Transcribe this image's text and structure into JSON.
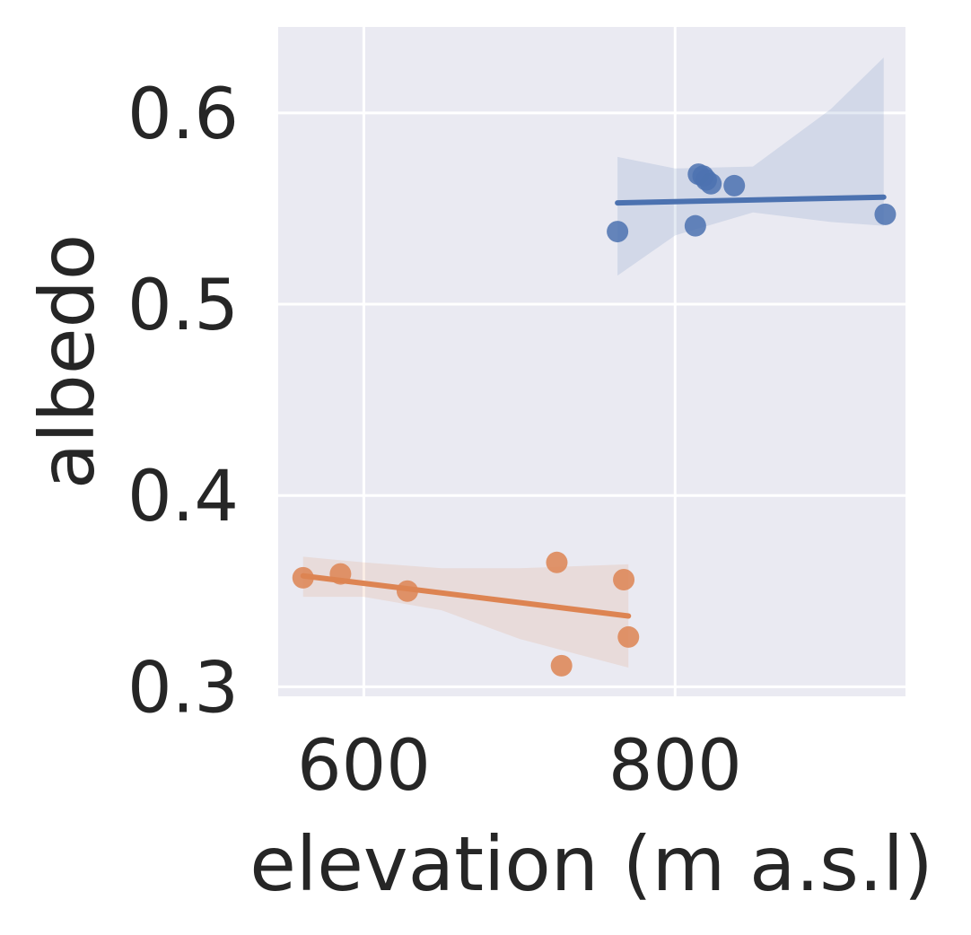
{
  "chart_data": {
    "type": "scatter",
    "title": "",
    "xlabel": "elevation (m a.s.l)",
    "ylabel": "albedo",
    "xlim": [
      545,
      948
    ],
    "ylim": [
      0.295,
      0.645
    ],
    "xticks": [
      600,
      800
    ],
    "yticks": [
      0.3,
      0.4,
      0.5,
      0.6
    ],
    "xtick_labels": [
      "600",
      "800"
    ],
    "ytick_labels": [
      "0.3",
      "0.4",
      "0.5",
      "0.6"
    ],
    "grid": true,
    "background": "#EAEAF2",
    "series": [
      {
        "color": "#4C72B0",
        "points": [
          {
            "x": 763,
            "y": 0.538
          },
          {
            "x": 813,
            "y": 0.541
          },
          {
            "x": 815,
            "y": 0.568
          },
          {
            "x": 818,
            "y": 0.567
          },
          {
            "x": 820,
            "y": 0.565
          },
          {
            "x": 823,
            "y": 0.563
          },
          {
            "x": 838,
            "y": 0.562
          },
          {
            "x": 935,
            "y": 0.547
          }
        ],
        "regression": {
          "x": [
            763,
            934
          ],
          "y": [
            0.553,
            0.556
          ]
        },
        "ci_band": {
          "x": [
            763,
            800,
            850,
            900,
            934
          ],
          "lower": [
            0.515,
            0.536,
            0.548,
            0.543,
            0.541
          ],
          "upper": [
            0.577,
            0.571,
            0.572,
            0.602,
            0.629
          ]
        }
      },
      {
        "color": "#DD8452",
        "points": [
          {
            "x": 561,
            "y": 0.357
          },
          {
            "x": 585,
            "y": 0.359
          },
          {
            "x": 628,
            "y": 0.35
          },
          {
            "x": 724,
            "y": 0.365
          },
          {
            "x": 727,
            "y": 0.311
          },
          {
            "x": 767,
            "y": 0.356
          },
          {
            "x": 770,
            "y": 0.326
          }
        ],
        "regression": {
          "x": [
            561,
            770
          ],
          "y": [
            0.358,
            0.337
          ]
        },
        "ci_band": {
          "x": [
            561,
            600,
            650,
            700,
            770
          ],
          "lower": [
            0.347,
            0.347,
            0.34,
            0.325,
            0.31
          ],
          "upper": [
            0.368,
            0.365,
            0.362,
            0.362,
            0.364
          ]
        }
      }
    ]
  }
}
